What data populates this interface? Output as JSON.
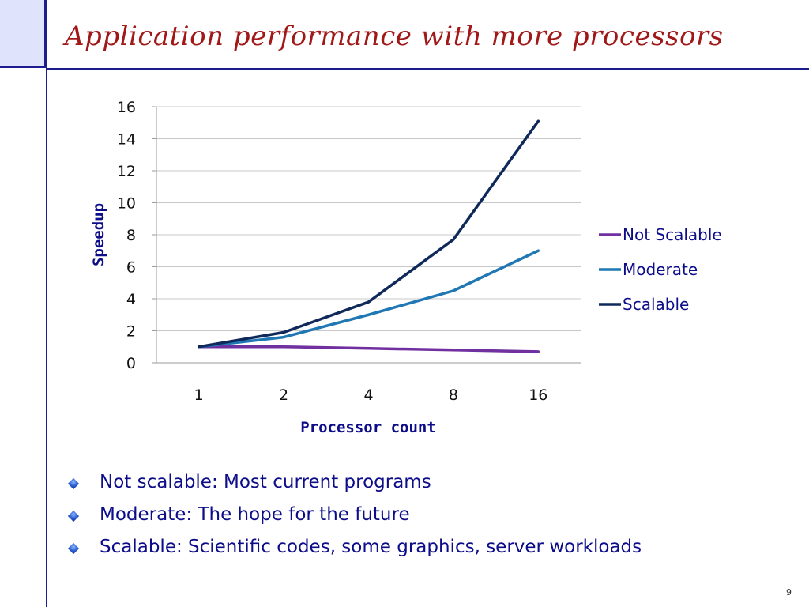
{
  "slide": {
    "title": "Application performance with more processors",
    "page_number": "9"
  },
  "bullets": [
    "Not scalable: Most current programs",
    "Moderate: The hope for the future",
    "Scalable: Scientific codes, some graphics, server workloads"
  ],
  "colors": {
    "title": "#a01818",
    "rules": "#1d1d8f",
    "bullet_text": "#0d0d8a",
    "not_scalable": "#7030a0",
    "moderate": "#1f77b4",
    "scalable": "#0f2a5a"
  },
  "chart_data": {
    "type": "line",
    "categories": [
      "1",
      "2",
      "4",
      "8",
      "16"
    ],
    "xlabel": "Processor count",
    "ylabel": "Speedup",
    "ylim": [
      0,
      16
    ],
    "yticks": [
      0,
      2,
      4,
      6,
      8,
      10,
      12,
      14,
      16
    ],
    "grid": true,
    "legend": "right",
    "series": [
      {
        "name": "Not Scalable",
        "values": [
          1,
          1,
          0.9,
          0.8,
          0.7
        ],
        "color": "#7030a0"
      },
      {
        "name": "Moderate",
        "values": [
          1,
          1.6,
          3,
          4.5,
          7
        ],
        "color": "#1f77b4"
      },
      {
        "name": "Scalable",
        "values": [
          1,
          1.9,
          3.8,
          7.7,
          15.1
        ],
        "color": "#0f2a5a"
      }
    ]
  }
}
